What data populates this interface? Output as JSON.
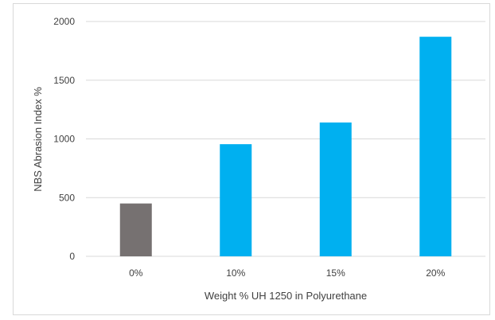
{
  "chart_data": {
    "type": "bar",
    "title": "",
    "xlabel": "Weight % UH 1250 in Polyurethane",
    "ylabel": "NBS Abrasion Index %",
    "categories": [
      "0%",
      "10%",
      "15%",
      "20%"
    ],
    "values": [
      450,
      955,
      1140,
      1870
    ],
    "bar_colors": [
      "#767171",
      "#00b0f0",
      "#00b0f0",
      "#00b0f0"
    ],
    "ylim": [
      0,
      2000
    ],
    "yticks": [
      0,
      500,
      1000,
      1500,
      2000
    ],
    "grid": true,
    "legend": "none"
  }
}
